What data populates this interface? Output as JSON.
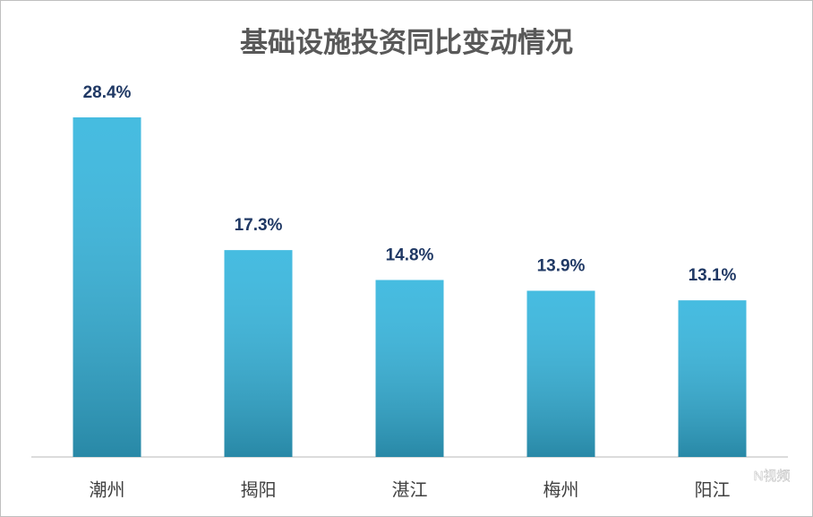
{
  "chart_data": {
    "type": "bar",
    "title": "基础设施投资同比变动情况",
    "categories": [
      "潮州",
      "揭阳",
      "湛江",
      "梅州",
      "阳江"
    ],
    "values": [
      28.4,
      17.3,
      14.8,
      13.9,
      13.1
    ],
    "value_labels": [
      "28.4%",
      "17.3%",
      "14.8%",
      "13.9%",
      "13.1%"
    ],
    "color": "#36b6de",
    "watermark": "N视频"
  }
}
